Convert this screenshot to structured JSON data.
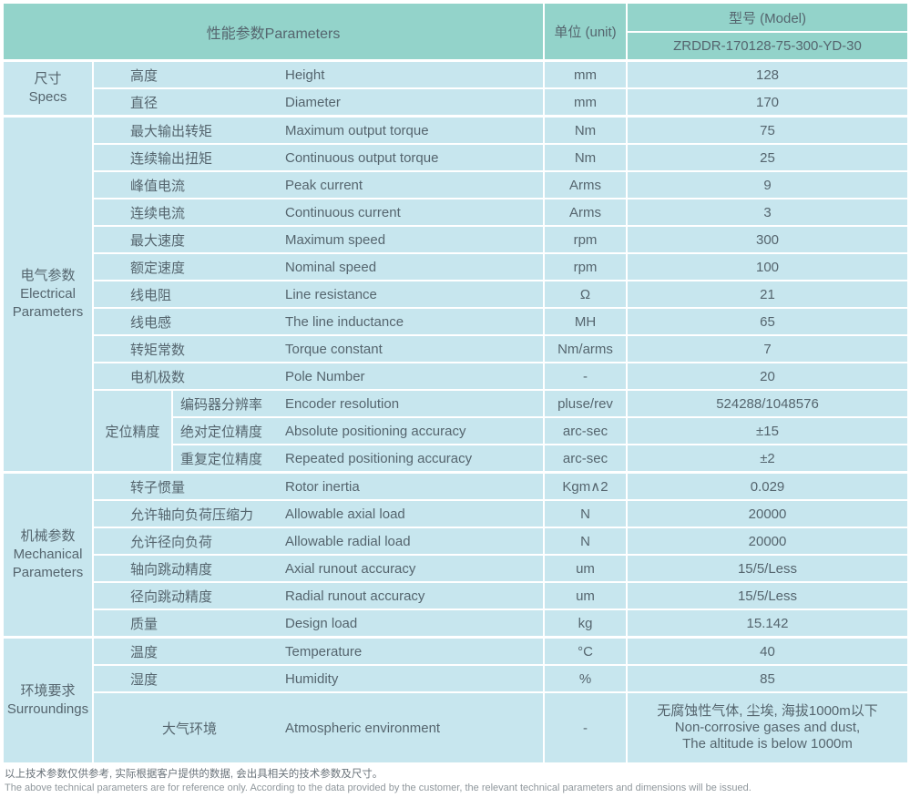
{
  "colors": {
    "teal": "#93d3ca",
    "blue": "#c7e6ee",
    "text": "#55656e",
    "note_cn": "#6a737a",
    "note_en": "#8f979c"
  },
  "table": {
    "header": {
      "parameters_label": "性能参数Parameters",
      "unit_label": "单位 (unit)",
      "model_label": "型号 (Model)",
      "model_value": "ZRDDR-170128-75-300-YD-30"
    },
    "sections": [
      {
        "category_lines": [
          "尺寸",
          "Specs"
        ],
        "rows": [
          {
            "cn": "高度",
            "en": "Height",
            "unit": "mm",
            "value": "128"
          },
          {
            "cn": "直径",
            "en": "Diameter",
            "unit": "mm",
            "value": "170"
          }
        ]
      },
      {
        "category_lines": [
          "电气参数",
          "Electrical",
          "Parameters"
        ],
        "rows": [
          {
            "cn": "最大输出转矩",
            "en": "Maximum output torque",
            "unit": "Nm",
            "value": "75"
          },
          {
            "cn": "连续输出扭矩",
            "en": "Continuous output torque",
            "unit": "Nm",
            "value": "25"
          },
          {
            "cn": "峰值电流",
            "en": "Peak current",
            "unit": "Arms",
            "value": "9"
          },
          {
            "cn": "连续电流",
            "en": "Continuous current",
            "unit": "Arms",
            "value": "3"
          },
          {
            "cn": "最大速度",
            "en": "Maximum speed",
            "unit": "rpm",
            "value": "300"
          },
          {
            "cn": "额定速度",
            "en": "Nominal speed",
            "unit": "rpm",
            "value": "100"
          },
          {
            "cn": "线电阻",
            "en": "Line resistance",
            "unit": "Ω",
            "value": "21"
          },
          {
            "cn": "线电感",
            "en": "The line inductance",
            "unit": "MH",
            "value": "65"
          },
          {
            "cn": "转矩常数",
            "en": "Torque constant",
            "unit": "Nm/arms",
            "value": "7"
          },
          {
            "cn": "电机极数",
            "en": "Pole Number",
            "unit": "-",
            "value": "20"
          }
        ],
        "subgroup": {
          "label": "定位精度",
          "rows": [
            {
              "cn": "编码器分辨率",
              "en": "Encoder resolution",
              "unit": "pluse/rev",
              "value": "524288/1048576"
            },
            {
              "cn": "绝对定位精度",
              "en": "Absolute positioning accuracy",
              "unit": "arc-sec",
              "value": "±15"
            },
            {
              "cn": "重复定位精度",
              "en": "Repeated positioning accuracy",
              "unit": "arc-sec",
              "value": "±2"
            }
          ]
        }
      },
      {
        "category_lines": [
          "机械参数",
          "Mechanical",
          "Parameters"
        ],
        "rows": [
          {
            "cn": "转子惯量",
            "en": "Rotor inertia",
            "unit": "Kgm∧2",
            "value": "0.029"
          },
          {
            "cn": "允许轴向负荷压缩力",
            "en": "Allowable axial load",
            "unit": "N",
            "value": "20000"
          },
          {
            "cn": "允许径向负荷",
            "en": "Allowable radial load",
            "unit": "N",
            "value": "20000"
          },
          {
            "cn": "轴向跳动精度",
            "en": "Axial runout accuracy",
            "unit": "um",
            "value": "15/5/Less"
          },
          {
            "cn": "径向跳动精度",
            "en": "Radial runout accuracy",
            "unit": "um",
            "value": "15/5/Less"
          },
          {
            "cn": "质量",
            "en": "Design load",
            "unit": "kg",
            "value": "15.142"
          }
        ]
      },
      {
        "category_lines": [
          "环境要求",
          "Surroundings"
        ],
        "rows": [
          {
            "cn": "温度",
            "en": "Temperature",
            "unit": "°C",
            "value": "40"
          },
          {
            "cn": "湿度",
            "en": "Humidity",
            "unit": "%",
            "value": "85"
          }
        ],
        "atmosphere": {
          "cn": "大气环境",
          "en": "Atmospheric environment",
          "unit": "-",
          "value_lines": [
            "无腐蚀性气体, 尘埃, 海拔1000m以下",
            "Non-corrosive gases and dust,",
            "The altitude is below 1000m"
          ]
        }
      }
    ],
    "notes": {
      "cn": "以上技术参数仅供参考, 实际根据客户提供的数据, 会出具相关的技术参数及尺寸。",
      "en": "The above technical parameters are for reference only. According to the data provided by the customer, the relevant technical parameters and dimensions will be issued."
    }
  }
}
